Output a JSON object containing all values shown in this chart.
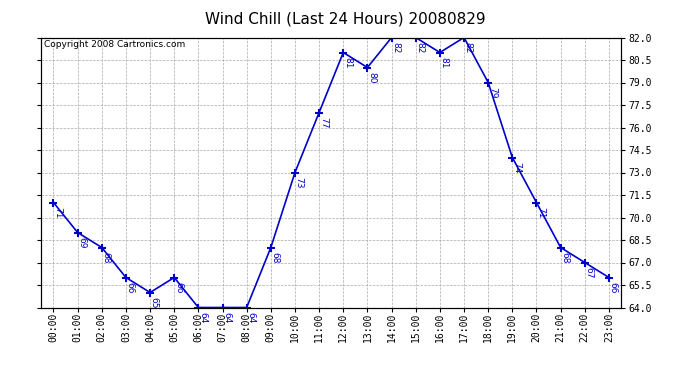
{
  "title": "Wind Chill (Last 24 Hours) 20080829",
  "copyright": "Copyright 2008 Cartronics.com",
  "x_labels": [
    "00:00",
    "01:00",
    "02:00",
    "03:00",
    "04:00",
    "05:00",
    "06:00",
    "07:00",
    "08:00",
    "09:00",
    "10:00",
    "11:00",
    "12:00",
    "13:00",
    "14:00",
    "15:00",
    "16:00",
    "17:00",
    "18:00",
    "19:00",
    "20:00",
    "21:00",
    "22:00",
    "23:00"
  ],
  "y_values": [
    71,
    69,
    68,
    66,
    65,
    66,
    64,
    64,
    64,
    68,
    73,
    77,
    81,
    80,
    82,
    82,
    81,
    82,
    79,
    74,
    71,
    68,
    67,
    66
  ],
  "ylim_min": 64.0,
  "ylim_max": 82.0,
  "yticks": [
    64.0,
    65.5,
    67.0,
    68.5,
    70.0,
    71.5,
    73.0,
    74.5,
    76.0,
    77.5,
    79.0,
    80.5,
    82.0
  ],
  "line_color": "#0000cc",
  "marker": "+",
  "marker_size": 6,
  "marker_linewidth": 1.5,
  "line_width": 1.2,
  "grid_color": "#aaaaaa",
  "grid_style": "--",
  "bg_color": "#ffffff",
  "title_fontsize": 11,
  "tick_fontsize": 7,
  "label_fontsize": 6.5,
  "copyright_fontsize": 6.5
}
